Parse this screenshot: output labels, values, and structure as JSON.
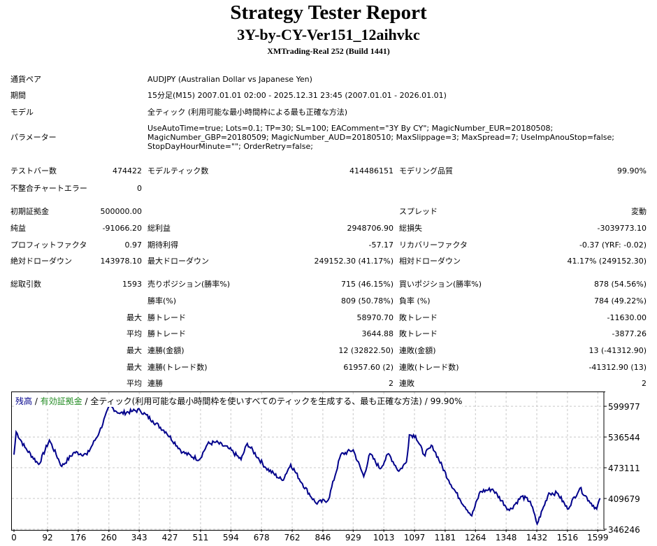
{
  "header": {
    "title": "Strategy Tester Report",
    "subtitle": "3Y-by-CY-Ver151_12aihvkc",
    "server": "XMTrading-Real 252 (Build 1441)"
  },
  "info": [
    {
      "label": "通貨ペア",
      "value": "AUDJPY (Australian Dollar vs Japanese Yen)"
    },
    {
      "label": "期間",
      "value": "15分足(M15) 2007.01.01 02:00 - 2025.12.31 23:45 (2007.01.01 - 2026.01.01)"
    },
    {
      "label": "モデル",
      "value": "全ティック (利用可能な最小時間枠による最も正確な方法)"
    },
    {
      "label": "パラメーター",
      "value": [
        "UseAutoTime=true; Lots=0.1; TP=30; SL=100; EAComment=\"3Y By CY\"; MagicNumber_EUR=20180508;",
        "MagicNumber_GBP=20180509; MagicNumber_AUD=20180510; MaxSlippage=3; MaxSpread=7; UseImpAnouStop=false;",
        "StopDayHourMinute=\"\"; OrderRetry=false;"
      ]
    }
  ],
  "stats": [
    [
      "テストバー数",
      "474422",
      "モデルティック数",
      "414486151",
      "モデリング品質",
      "99.90%"
    ],
    [
      "不整合チャートエラー",
      "0",
      "",
      "",
      "",
      ""
    ],
    [
      "初期証拠金",
      "500000.00",
      "",
      "",
      "スプレッド",
      "変動"
    ],
    [
      "純益",
      "-91066.20",
      "総利益",
      "2948706.90",
      "総損失",
      "-3039773.10"
    ],
    [
      "プロフィットファクタ",
      "0.97",
      "期待利得",
      "-57.17",
      "リカバリーファクタ",
      "-0.37 (YRF: -0.02)"
    ],
    [
      "絶対ドローダウン",
      "143978.10",
      "最大ドローダウン",
      "249152.30 (41.17%)",
      "相対ドローダウン",
      "41.17% (249152.30)"
    ],
    [
      "総取引数",
      "1593",
      "売りポジション(勝率%)",
      "715 (46.15%)",
      "買いポジション(勝率%)",
      "878 (54.56%)"
    ],
    [
      "",
      "",
      "勝率(%)",
      "809 (50.78%)",
      "負率 (%)",
      "784 (49.22%)"
    ],
    [
      "",
      "最大",
      "勝トレード",
      "58970.70",
      "敗トレード",
      "-11630.00"
    ],
    [
      "",
      "平均",
      "勝トレード",
      "3644.88",
      "敗トレード",
      "-3877.26"
    ],
    [
      "",
      "最大",
      "連勝(金額)",
      "12 (32822.50)",
      "連敗(金額)",
      "13 (-41312.90)"
    ],
    [
      "",
      "最大",
      "連勝(トレード数)",
      "61957.60 (2)",
      "連敗(トレード数)",
      "-41312.90 (13)"
    ],
    [
      "",
      "平均",
      "連勝",
      "2",
      "連敗",
      "2"
    ]
  ],
  "chart_data": {
    "type": "line",
    "legend": {
      "balance": "残高",
      "sep1": " / ",
      "equity": "有効証拠金",
      "rest": " / 全ティック(利用可能な最小時間枠を使いすべてのティックを生成する、最も正確な方法) / 99.90%"
    },
    "colors": {
      "balance": "#00008b",
      "equity": "#228b22"
    },
    "x_ticks": [
      "0",
      "92",
      "176",
      "260",
      "343",
      "427",
      "511",
      "594",
      "678",
      "762",
      "846",
      "929",
      "1013",
      "1097",
      "1181",
      "1264",
      "1348",
      "1432",
      "1516",
      "1599"
    ],
    "y_ticks": [
      "599977",
      "536544",
      "473111",
      "409679",
      "346246"
    ],
    "xlim": [
      0,
      1610
    ],
    "ylim": [
      346246,
      629000
    ],
    "series": [
      {
        "name": "残高",
        "points": [
          [
            0,
            500000
          ],
          [
            6,
            547000
          ],
          [
            30,
            515000
          ],
          [
            68,
            480000
          ],
          [
            97,
            530000
          ],
          [
            131,
            476000
          ],
          [
            165,
            505000
          ],
          [
            200,
            500000
          ],
          [
            234,
            547000
          ],
          [
            262,
            601000
          ],
          [
            290,
            585000
          ],
          [
            325,
            590000
          ],
          [
            345,
            592000
          ],
          [
            380,
            570000
          ],
          [
            416,
            547000
          ],
          [
            462,
            505000
          ],
          [
            508,
            490000
          ],
          [
            530,
            522000
          ],
          [
            553,
            526000
          ],
          [
            590,
            512000
          ],
          [
            622,
            490000
          ],
          [
            639,
            523000
          ],
          [
            690,
            473000
          ],
          [
            735,
            447000
          ],
          [
            758,
            480000
          ],
          [
            790,
            440000
          ],
          [
            827,
            400000
          ],
          [
            861,
            407000
          ],
          [
            895,
            500000
          ],
          [
            929,
            510000
          ],
          [
            958,
            455000
          ],
          [
            975,
            502000
          ],
          [
            1003,
            471000
          ],
          [
            1026,
            502000
          ],
          [
            1054,
            466000
          ],
          [
            1075,
            485000
          ],
          [
            1083,
            541000
          ],
          [
            1100,
            539000
          ],
          [
            1123,
            500000
          ],
          [
            1146,
            518000
          ],
          [
            1191,
            447000
          ],
          [
            1220,
            410000
          ],
          [
            1254,
            374000
          ],
          [
            1277,
            424000
          ],
          [
            1311,
            429000
          ],
          [
            1357,
            385000
          ],
          [
            1391,
            414000
          ],
          [
            1414,
            404000
          ],
          [
            1433,
            357000
          ],
          [
            1465,
            421000
          ],
          [
            1490,
            420000
          ],
          [
            1516,
            388000
          ],
          [
            1550,
            431000
          ],
          [
            1575,
            405000
          ],
          [
            1596,
            388000
          ],
          [
            1605,
            410000
          ]
        ]
      }
    ]
  }
}
